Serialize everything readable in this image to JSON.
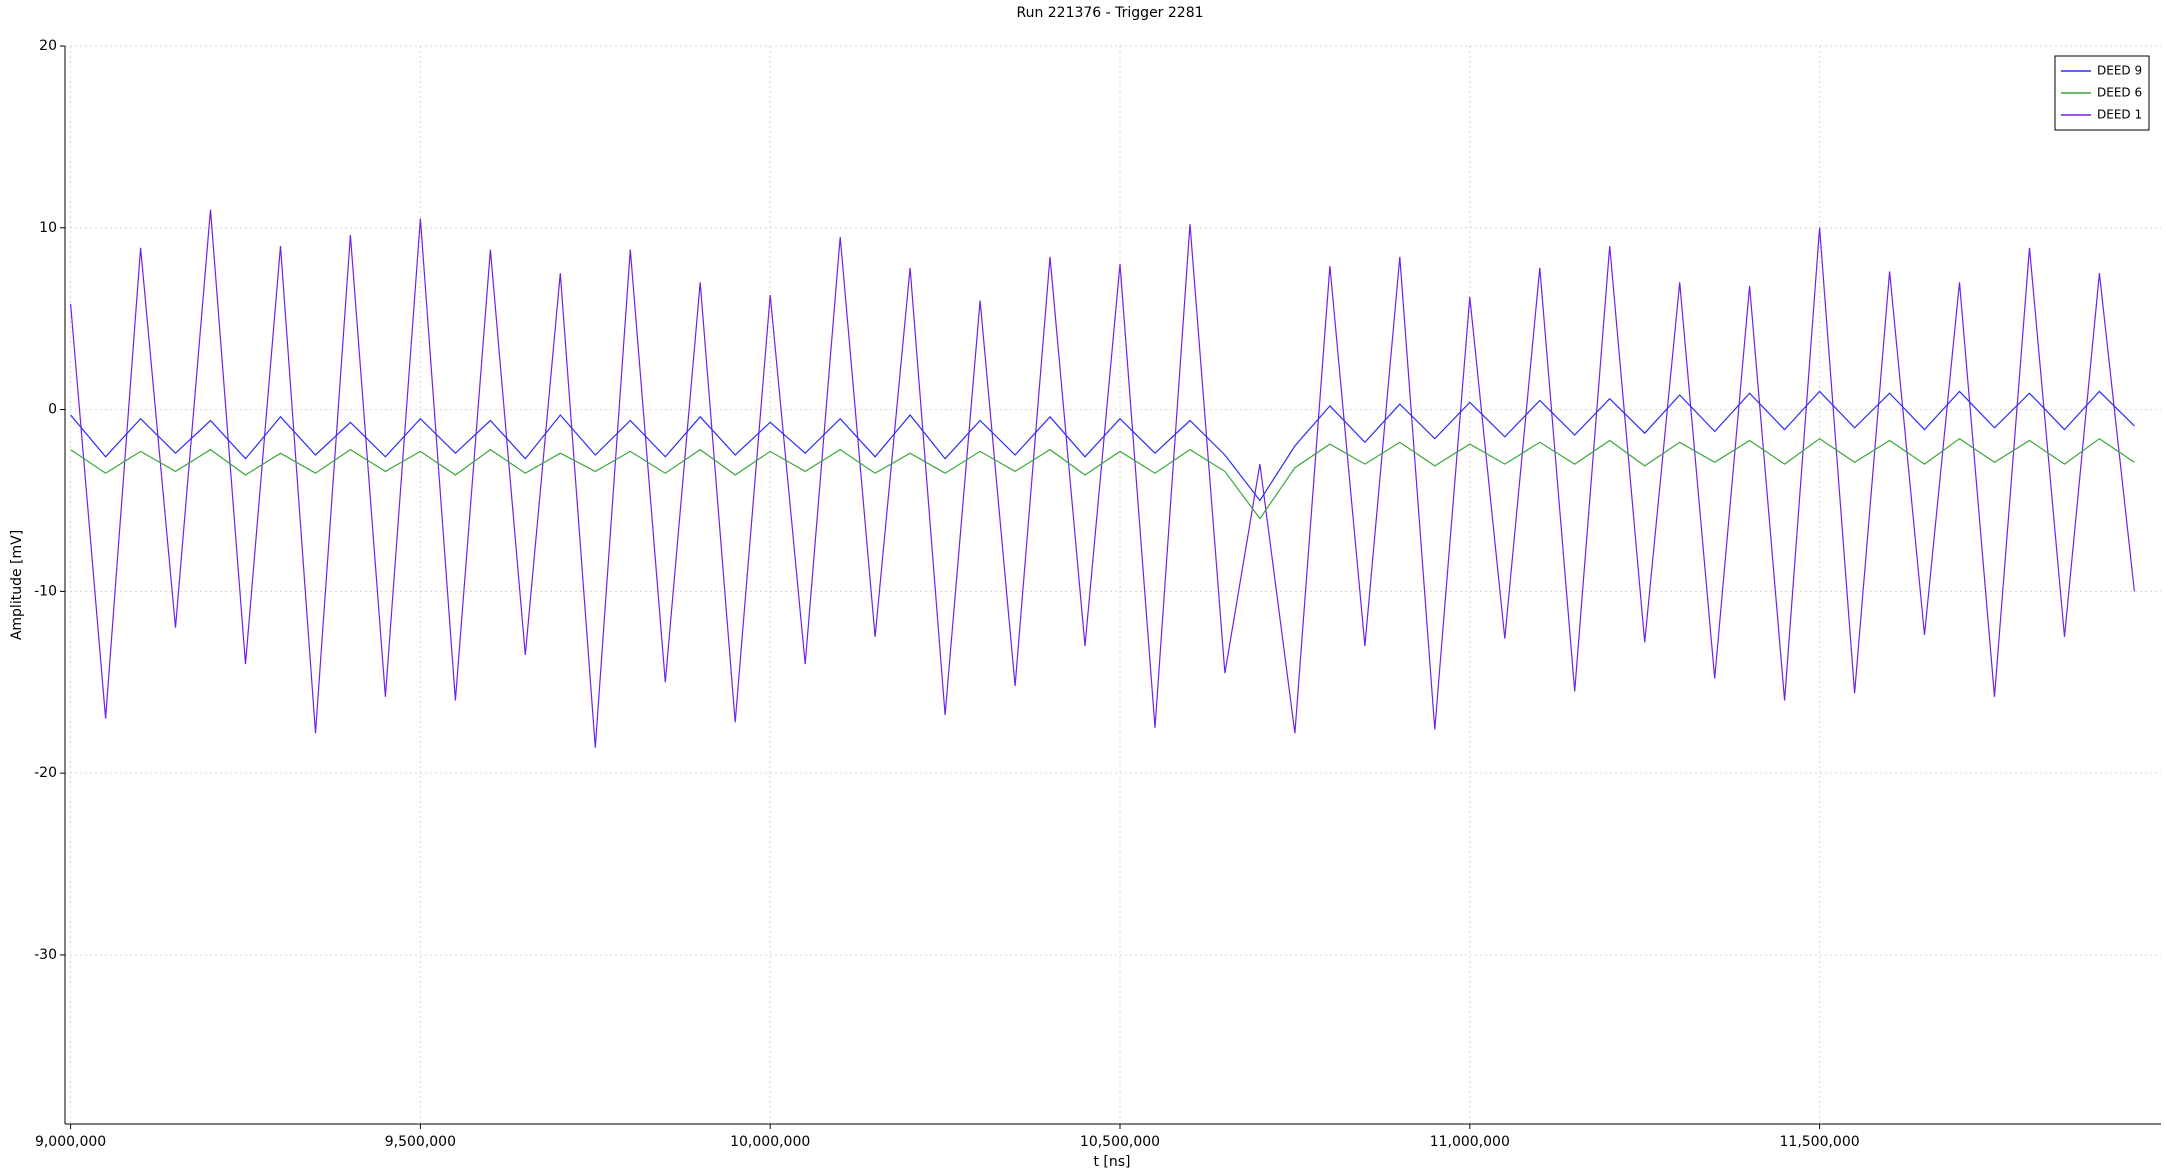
{
  "chart_data": {
    "type": "line",
    "title": "Run 221376 - Trigger 2281",
    "x_label": "t [ns]",
    "y_label": "Amplitude [mV]",
    "x": [
      9000000,
      9050000,
      9100000,
      9150000,
      9200000,
      9250000,
      9300000,
      9350000,
      9400000,
      9450000,
      9500000,
      9550000,
      9600000,
      9650000,
      9700000,
      9750000,
      9800000,
      9850000,
      9900000,
      9950000,
      10000000,
      10050000,
      10100000,
      10150000,
      10200000,
      10250000,
      10300000,
      10350000,
      10400000,
      10450000,
      10500000,
      10550000,
      10600000,
      10650000,
      10700000,
      10750000,
      10800000,
      10850000,
      10900000,
      10950000,
      11000000,
      11050000,
      11100000,
      11150000,
      11200000,
      11250000,
      11300000,
      11350000,
      11400000,
      11450000,
      11500000,
      11550000,
      11600000,
      11650000,
      11700000,
      11750000,
      11800000,
      11850000,
      11900000,
      11950000
    ],
    "series": [
      {
        "name": "DEED 9",
        "color": "#2b2bff",
        "values": [
          -0.3,
          -2.6,
          -0.5,
          -2.4,
          -0.6,
          -2.7,
          -0.4,
          -2.5,
          -0.7,
          -2.6,
          -0.5,
          -2.4,
          -0.6,
          -2.7,
          -0.3,
          -2.5,
          -0.6,
          -2.6,
          -0.4,
          -2.5,
          -0.7,
          -2.4,
          -0.5,
          -2.6,
          -0.3,
          -2.7,
          -0.6,
          -2.5,
          -0.4,
          -2.6,
          -0.5,
          -2.4,
          -0.6,
          -2.5,
          -5.0,
          -2.0,
          0.2,
          -1.8,
          0.3,
          -1.6,
          0.4,
          -1.5,
          0.5,
          -1.4,
          0.6,
          -1.3,
          0.8,
          -1.2,
          0.9,
          -1.1,
          1.0,
          -1.0,
          0.9,
          -1.1,
          1.0,
          -1.0,
          0.9,
          -1.1,
          1.0,
          -0.9
        ]
      },
      {
        "name": "DEED 6",
        "color": "#3aa63a",
        "values": [
          -2.2,
          -3.5,
          -2.3,
          -3.4,
          -2.2,
          -3.6,
          -2.4,
          -3.5,
          -2.2,
          -3.4,
          -2.3,
          -3.6,
          -2.2,
          -3.5,
          -2.4,
          -3.4,
          -2.3,
          -3.5,
          -2.2,
          -3.6,
          -2.3,
          -3.4,
          -2.2,
          -3.5,
          -2.4,
          -3.5,
          -2.3,
          -3.4,
          -2.2,
          -3.6,
          -2.3,
          -3.5,
          -2.2,
          -3.4,
          -6.0,
          -3.2,
          -1.9,
          -3.0,
          -1.8,
          -3.1,
          -1.9,
          -3.0,
          -1.8,
          -3.0,
          -1.7,
          -3.1,
          -1.8,
          -2.9,
          -1.7,
          -3.0,
          -1.6,
          -2.9,
          -1.7,
          -3.0,
          -1.6,
          -2.9,
          -1.7,
          -3.0,
          -1.6,
          -2.9
        ]
      },
      {
        "name": "DEED 1",
        "color": "#7020e8",
        "values": [
          5.8,
          -17.0,
          8.9,
          -12.0,
          11.0,
          -14.0,
          9.0,
          -17.8,
          9.6,
          -15.8,
          10.5,
          -16.0,
          8.8,
          -13.5,
          7.5,
          -18.6,
          8.8,
          -15.0,
          7.0,
          -17.2,
          6.3,
          -14.0,
          9.5,
          -12.5,
          7.8,
          -16.8,
          6.0,
          -15.2,
          8.4,
          -13.0,
          8.0,
          -17.5,
          10.2,
          -14.5,
          -3.0,
          -17.8,
          7.9,
          -13.0,
          8.4,
          -17.6,
          6.2,
          -12.6,
          7.8,
          -15.5,
          9.0,
          -12.8,
          7.0,
          -14.8,
          6.8,
          -16.0,
          10.0,
          -15.6,
          7.6,
          -12.4,
          7.0,
          -15.8,
          8.9,
          -12.5,
          7.5,
          -10.0
        ]
      }
    ],
    "xlim": [
      8992000,
      11988000
    ],
    "xticks": [
      {
        "value": 9000000,
        "label": "9,000,000"
      },
      {
        "value": 9500000,
        "label": "9,500,000"
      },
      {
        "value": 10000000,
        "label": "10,000,000"
      },
      {
        "value": 10500000,
        "label": "10,500,000"
      },
      {
        "value": 11000000,
        "label": "11,000,000"
      },
      {
        "value": 11500000,
        "label": "11,500,000"
      }
    ],
    "ylim": [
      -39.3,
      20
    ],
    "yticks": [
      -30,
      -20,
      -10,
      0,
      10,
      20
    ],
    "grid": true,
    "legend": "top-right"
  }
}
